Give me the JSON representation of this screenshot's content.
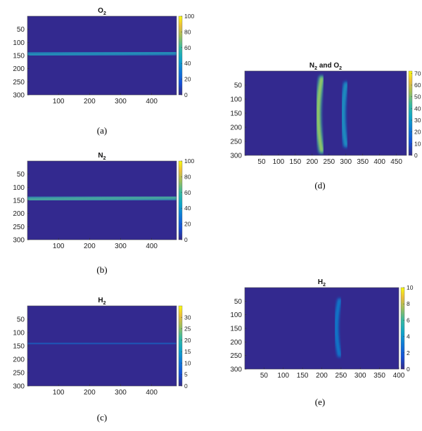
{
  "colors": {
    "background": "#33298f",
    "band": "#2d9bd6",
    "peak": "#f5e21c"
  },
  "chart_data": [
    {
      "type": "heatmap",
      "title": "O",
      "title_sub": "2",
      "caption": "(a)",
      "xlim": [
        0,
        480
      ],
      "ylim": [
        300,
        0
      ],
      "xticks": [
        100,
        200,
        300,
        400
      ],
      "yticks": [
        50,
        100,
        150,
        200,
        250,
        300
      ],
      "colorbar": {
        "min": 0,
        "max": 100,
        "ticks": [
          0,
          20,
          40,
          60,
          80,
          100
        ]
      },
      "features": [
        {
          "shape": "horizontal-line",
          "y_start": 146,
          "y_end": 140,
          "value": 60,
          "width": 10
        }
      ]
    },
    {
      "type": "heatmap",
      "title": "N",
      "title_sub": "2",
      "caption": "(b)",
      "xlim": [
        0,
        480
      ],
      "ylim": [
        300,
        0
      ],
      "xticks": [
        100,
        200,
        300,
        400
      ],
      "yticks": [
        50,
        100,
        150,
        200,
        250,
        300
      ],
      "colorbar": {
        "min": 0,
        "max": 100,
        "ticks": [
          0,
          20,
          40,
          60,
          80,
          100
        ]
      },
      "features": [
        {
          "shape": "horizontal-line",
          "y_start": 146,
          "y_end": 139,
          "value": 70,
          "width": 14
        }
      ]
    },
    {
      "type": "heatmap",
      "title": "H",
      "title_sub": "2",
      "caption": "(c)",
      "xlim": [
        0,
        480
      ],
      "ylim": [
        300,
        0
      ],
      "xticks": [
        100,
        200,
        300,
        400
      ],
      "yticks": [
        50,
        100,
        150,
        200,
        250,
        300
      ],
      "colorbar": {
        "min": 0,
        "max": 35,
        "ticks": [
          0,
          5,
          10,
          15,
          20,
          25,
          30
        ]
      },
      "features": [
        {
          "shape": "horizontal-line",
          "y_start": 142,
          "y_end": 140,
          "value": 14,
          "width": 5
        }
      ]
    },
    {
      "type": "heatmap",
      "title": "N",
      "title_sub": "2",
      "title_mid": " and O",
      "title_sub2": "2",
      "caption": "(d)",
      "xlim": [
        0,
        480
      ],
      "ylim": [
        300,
        0
      ],
      "xticks": [
        50,
        100,
        150,
        200,
        250,
        300,
        350,
        400,
        450
      ],
      "yticks": [
        50,
        100,
        150,
        200,
        250,
        300
      ],
      "colorbar": {
        "min": 0,
        "max": 72,
        "ticks": [
          0,
          10,
          20,
          30,
          40,
          50,
          60,
          70
        ]
      },
      "features": [
        {
          "shape": "arc",
          "x_edges": 228,
          "x_center": 218,
          "y_range": [
            25,
            285
          ],
          "value": 68,
          "width": 14
        },
        {
          "shape": "arc",
          "x_edges": 300,
          "x_center": 292,
          "y_range": [
            45,
            265
          ],
          "value": 40,
          "width": 11
        }
      ]
    },
    {
      "type": "heatmap",
      "title": "H",
      "title_sub": "2",
      "caption": "(e)",
      "xlim": [
        0,
        400
      ],
      "ylim": [
        300,
        0
      ],
      "xticks": [
        50,
        100,
        150,
        200,
        250,
        300,
        350,
        400
      ],
      "yticks": [
        50,
        100,
        150,
        200,
        250,
        300
      ],
      "colorbar": {
        "min": 0,
        "max": 10,
        "ticks": [
          0,
          2,
          4,
          6,
          8,
          10
        ]
      },
      "features": [
        {
          "shape": "arc",
          "x_edges": 246,
          "x_center": 238,
          "y_range": [
            45,
            250
          ],
          "value": 4.5,
          "width": 9
        }
      ]
    }
  ]
}
